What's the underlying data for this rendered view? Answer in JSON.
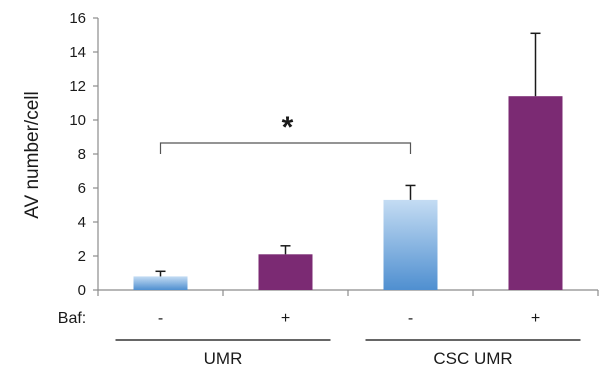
{
  "chart_data": {
    "type": "bar",
    "ylabel": "AV number/cell",
    "ylim": [
      0,
      16
    ],
    "yticks": [
      0,
      2,
      4,
      6,
      8,
      10,
      12,
      14,
      16
    ],
    "row_label": "Baf:",
    "bars": [
      {
        "baf": "-",
        "value": 0.8,
        "error": 0.3,
        "color": "#7aaee0"
      },
      {
        "baf": "+",
        "value": 2.1,
        "error": 0.5,
        "color": "#7b2a73"
      },
      {
        "baf": "-",
        "value": 5.3,
        "error": 0.85,
        "color": "#5b9bd5"
      },
      {
        "baf": "+",
        "value": 11.4,
        "error": 3.7,
        "color": "#7b2a73"
      }
    ],
    "groups": [
      "UMR",
      "CSC UMR"
    ],
    "annotation": {
      "text": "*",
      "from_bar": 0,
      "to_bar": 2
    }
  }
}
